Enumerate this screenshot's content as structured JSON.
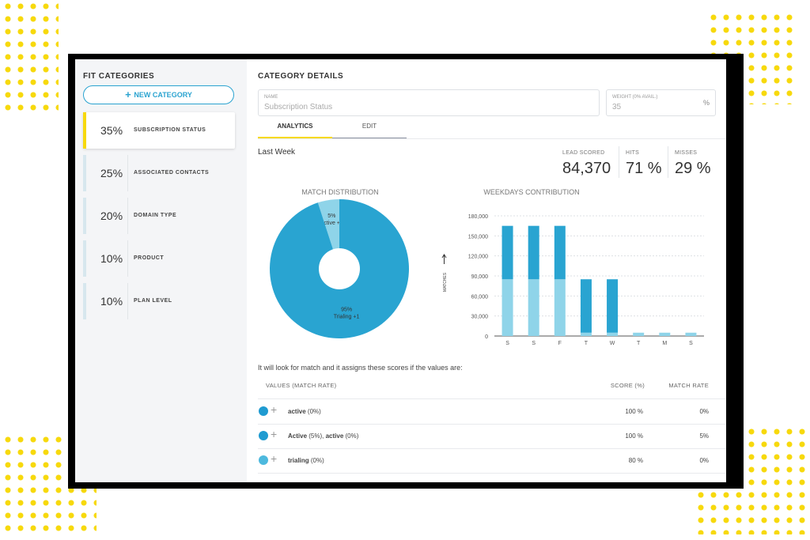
{
  "sidebar": {
    "title": "FIT CATEGORIES",
    "button": "NEW CATEGORY",
    "items": [
      {
        "percent": "35%",
        "name": "SUBSCRIPTION STATUS"
      },
      {
        "percent": "25%",
        "name": "ASSOCIATED CONTACTS"
      },
      {
        "percent": "20%",
        "name": "DOMAIN TYPE"
      },
      {
        "percent": "10%",
        "name": "PRODUCT"
      },
      {
        "percent": "10%",
        "name": "PLAN LEVEL"
      }
    ]
  },
  "details": {
    "title": "CATEGORY DETAILS",
    "name_label": "NAME",
    "name_value": "Subscription Status",
    "weight_label": "WEIGHT (0% AVAIL.)",
    "weight_value": "35",
    "weight_unit": "%",
    "tabs": [
      "ANALYTICS",
      "EDIT"
    ],
    "period": "Last Week",
    "stats": [
      {
        "label": "LEAD SCORED",
        "value": "84,370"
      },
      {
        "label": "HITS",
        "value": "71 %"
      },
      {
        "label": "MISSES",
        "value": "29 %"
      }
    ]
  },
  "chart_data": [
    {
      "type": "pie",
      "title": "MATCH DISTRIBUTION",
      "categories": [
        "Active +1",
        "Trialing +1"
      ],
      "values": [
        5,
        95
      ],
      "value_labels": [
        "5%",
        "95%"
      ],
      "colors": [
        "#8fd4e9",
        "#29a4d1"
      ],
      "donut": true
    },
    {
      "type": "bar",
      "stacked": true,
      "title": "WEEKDAYS CONTRIBUTION",
      "y_label": "MATCHES",
      "categories": [
        "S",
        "S",
        "F",
        "T",
        "W",
        "T",
        "M",
        "S"
      ],
      "series": [
        {
          "color": "#8fd4e9",
          "values": [
            85000,
            85000,
            85000,
            5000,
            5000,
            5000,
            5000,
            5000
          ]
        },
        {
          "color": "#29a4d1",
          "values": [
            80000,
            80000,
            80000,
            80000,
            80000,
            0,
            0,
            0
          ]
        }
      ],
      "ylim": [
        0,
        180000
      ],
      "yticks": [
        0,
        {
          "value": 30000,
          "label": "30,000"
        },
        {
          "value": 60000,
          "label": "60,000"
        },
        {
          "value": 90000,
          "label": "90,000"
        },
        {
          "value": 120000,
          "label": "120,000"
        },
        {
          "value": 150000,
          "label": "150,000"
        },
        {
          "value": 180000,
          "label": "180,000"
        }
      ],
      "grid": true
    }
  ],
  "scores": {
    "intro": "It will look for match and it assigns these scores if the values are:",
    "headers": [
      "VALUES (MATCH RATE)",
      "SCORE (%)",
      "MATCH RATE"
    ],
    "rows": [
      {
        "parts": [
          "active",
          " (0%)"
        ],
        "score": "100 %",
        "rate": "0%",
        "color": "#1f9bd1"
      },
      {
        "parts": [
          "Active",
          " (5%), ",
          "active",
          " (0%)"
        ],
        "score": "100 %",
        "rate": "5%",
        "color": "#1f9bd1"
      },
      {
        "parts": [
          "trialing",
          " (0%)"
        ],
        "score": "80 %",
        "rate": "0%",
        "color": "#4db9de"
      }
    ]
  }
}
